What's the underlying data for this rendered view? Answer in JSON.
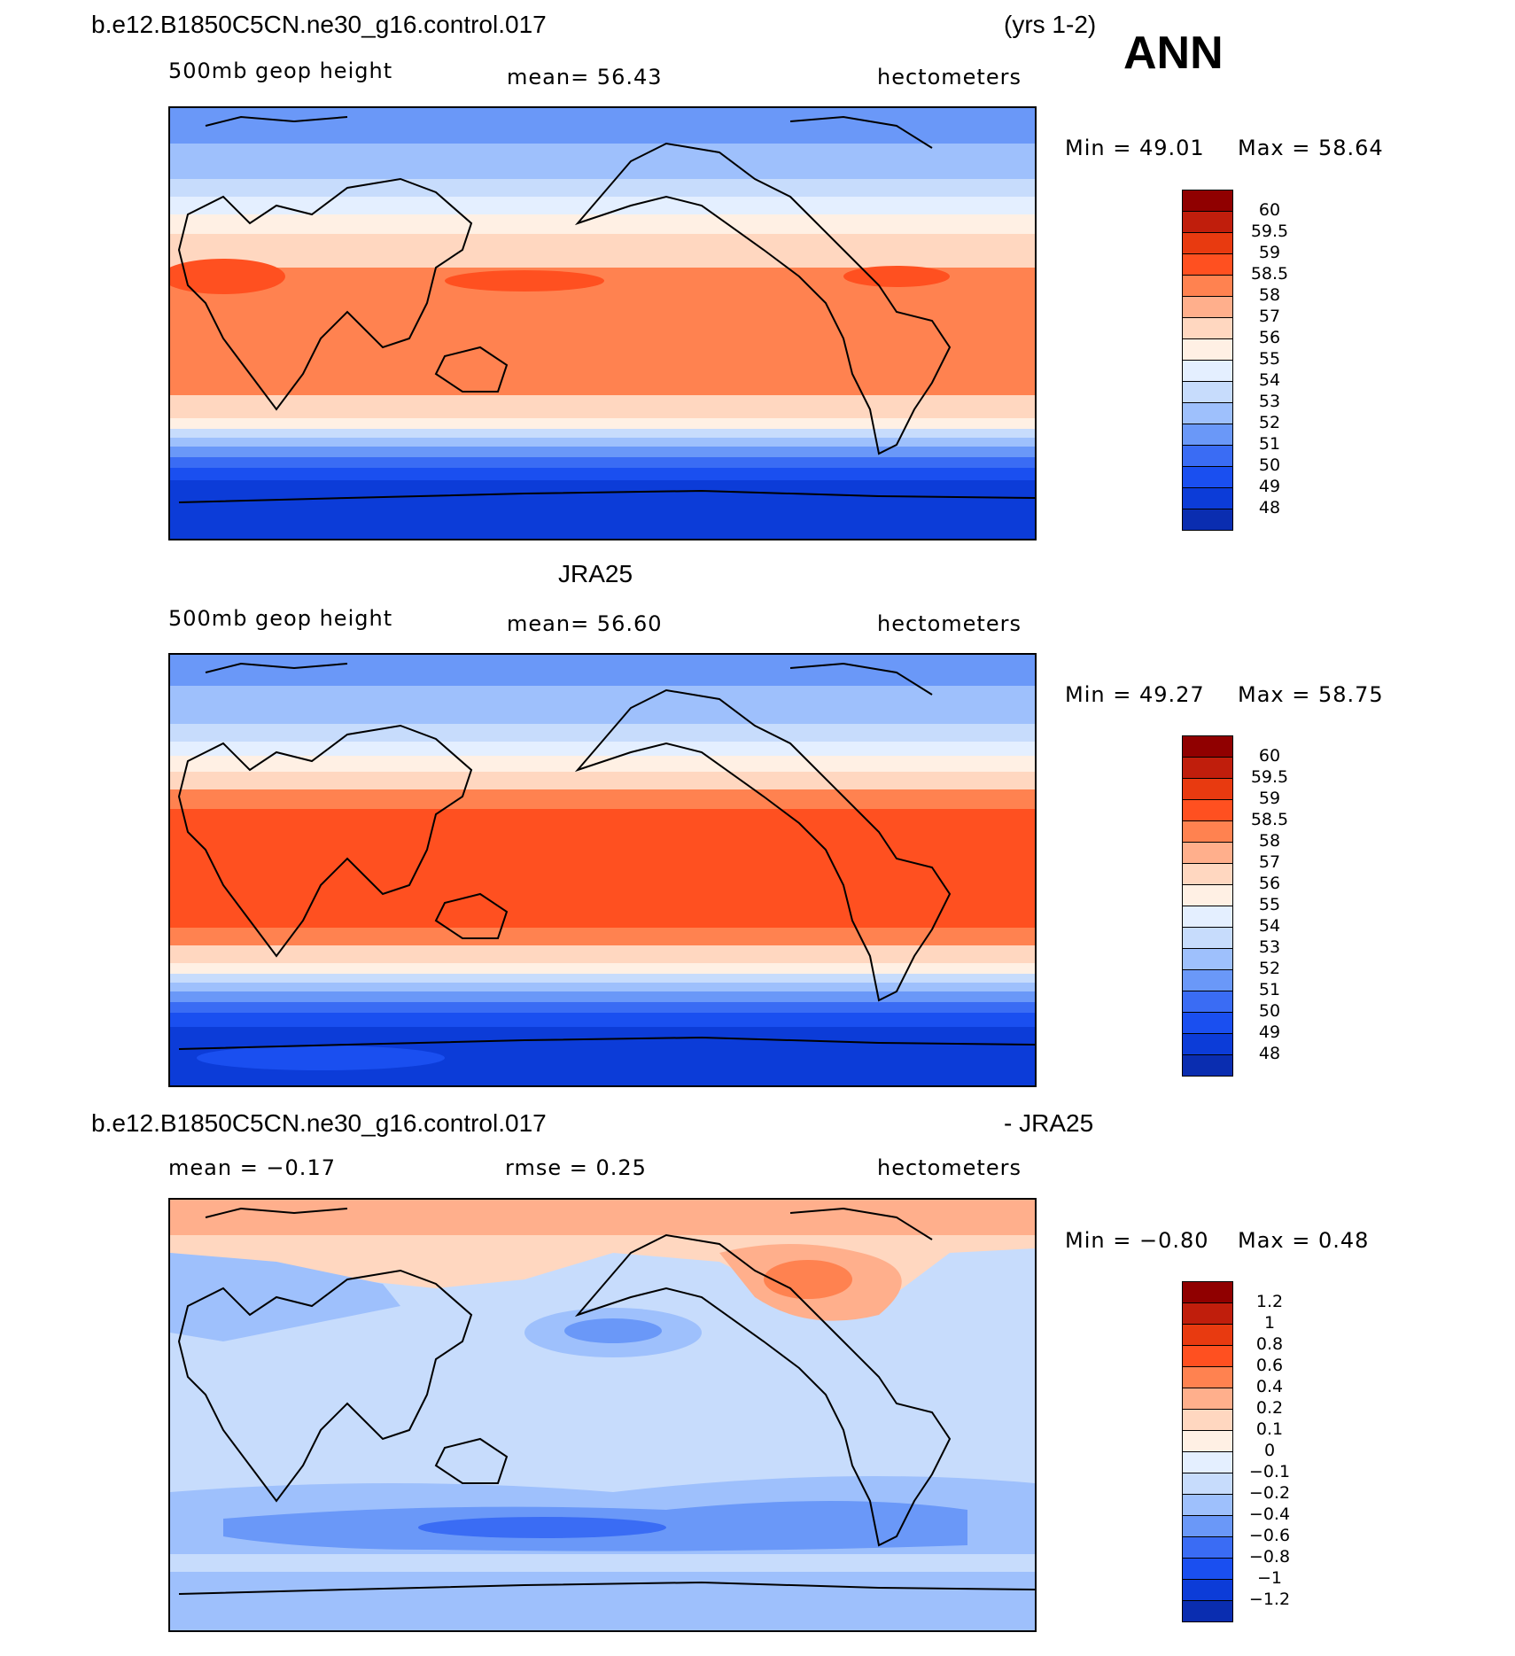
{
  "header": {
    "case_name": "b.e12.B1850C5CN.ne30_g16.control.017",
    "years": "(yrs 1-2)",
    "season": "ANN"
  },
  "colors": {
    "height_scale": [
      "#000080",
      "#0a2db0",
      "#0c3cd8",
      "#1a4ff0",
      "#3a6cf4",
      "#6a98f8",
      "#9ec0fc",
      "#c7dcfc",
      "#e4efff",
      "#fff0e4",
      "#ffd7c0",
      "#ffaf8c",
      "#ff8250",
      "#ff5020",
      "#e83a10",
      "#c01e0c",
      "#900000"
    ],
    "diff_scale": [
      "#000080",
      "#0a2db0",
      "#0c3cd8",
      "#1a4ff0",
      "#3a6cf4",
      "#6a98f8",
      "#9ec0fc",
      "#c7dcfc",
      "#e4efff",
      "#fff0e4",
      "#ffd7c0",
      "#ffaf8c",
      "#ff8250",
      "#ff5020",
      "#e83a10",
      "#c01e0c",
      "#900000"
    ]
  },
  "chart_data": [
    {
      "type": "heatmap",
      "title": "",
      "variable": "500mb  geop  height",
      "mean_text": "mean=   56.43",
      "units": "hectometers",
      "min_text": "Min  =    49.01",
      "max_text": "Max  =    58.64",
      "min": 49.01,
      "max": 58.64,
      "mean": 56.43,
      "levels": [
        "60",
        "59.5",
        "59",
        "58.5",
        "58",
        "57",
        "56",
        "55",
        "54",
        "53",
        "52",
        "51",
        "50",
        "49",
        "48"
      ]
    },
    {
      "type": "heatmap",
      "title": "JRA25",
      "variable": "500mb  geop  height",
      "mean_text": "mean=   56.60",
      "units": "hectometers",
      "min_text": "Min  =    49.27",
      "max_text": "Max  =    58.75",
      "min": 49.27,
      "max": 58.75,
      "mean": 56.6,
      "levels": [
        "60",
        "59.5",
        "59",
        "58.5",
        "58",
        "57",
        "56",
        "55",
        "54",
        "53",
        "52",
        "51",
        "50",
        "49",
        "48"
      ]
    },
    {
      "type": "heatmap",
      "title": "b.e12.B1850C5CN.ne30_g16.control.017",
      "title_right": "- JRA25",
      "variable": "",
      "mean_text": "mean  =   −0.17",
      "rmse_text": "rmse  =     0.25",
      "units": "hectometers",
      "min_text": "Min  =   −0.80",
      "max_text": "Max  =      0.48",
      "min": -0.8,
      "max": 0.48,
      "mean": -0.17,
      "rmse": 0.25,
      "levels": [
        "1.2",
        "1",
        "0.8",
        "0.6",
        "0.4",
        "0.2",
        "0.1",
        "0",
        "−0.1",
        "−0.2",
        "−0.4",
        "−0.6",
        "−0.8",
        "−1",
        "−1.2"
      ]
    }
  ]
}
